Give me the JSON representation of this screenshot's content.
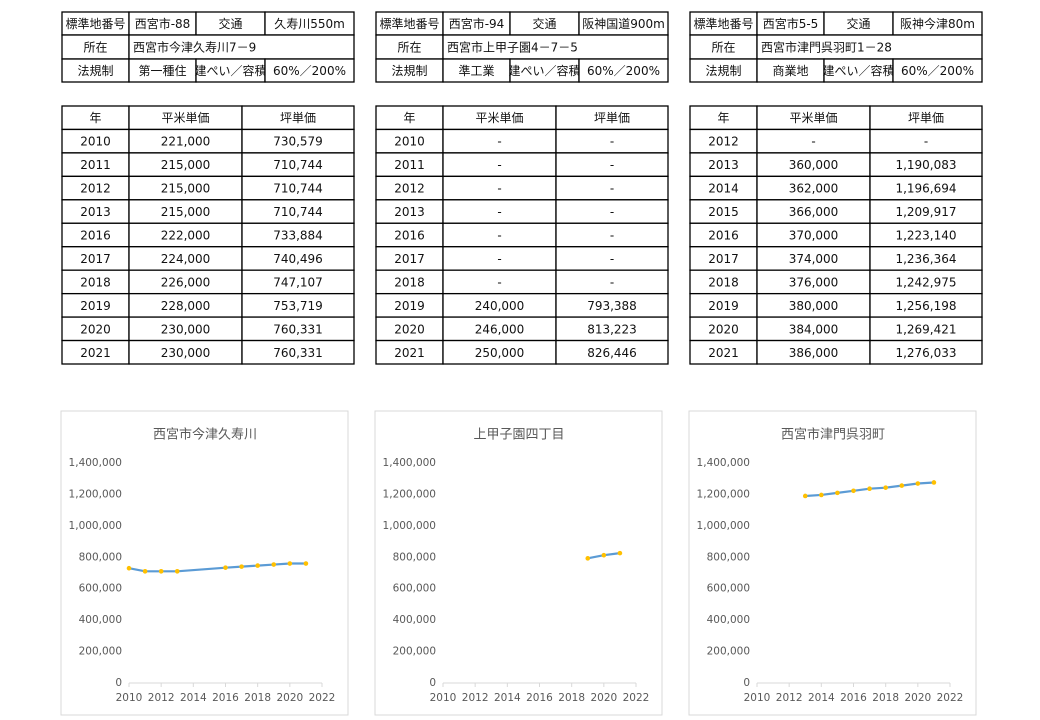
{
  "panels": [
    {
      "info": [
        [
          "標準地番号",
          "西宮市-88",
          "交通",
          "久寿川550m"
        ],
        [
          "所在",
          "西宮市今津久寿川7－9"
        ],
        [
          "法規制",
          "第一種住",
          "建ぺい／容積",
          "60%／200%"
        ]
      ],
      "table": {
        "header": [
          "年",
          "平米単価",
          "坪単価"
        ],
        "rows": [
          [
            "2010",
            "221,000",
            "730,579"
          ],
          [
            "2011",
            "215,000",
            "710,744"
          ],
          [
            "2012",
            "215,000",
            "710,744"
          ],
          [
            "2013",
            "215,000",
            "710,744"
          ],
          [
            "2016",
            "222,000",
            "733,884"
          ],
          [
            "2017",
            "224,000",
            "740,496"
          ],
          [
            "2018",
            "226,000",
            "747,107"
          ],
          [
            "2019",
            "228,000",
            "753,719"
          ],
          [
            "2020",
            "230,000",
            "760,331"
          ],
          [
            "2021",
            "230,000",
            "760,331"
          ]
        ]
      }
    },
    {
      "info": [
        [
          "標準地番号",
          "西宮市-94",
          "交通",
          "阪神国道900m"
        ],
        [
          "所在",
          "西宮市上甲子園4－7－5"
        ],
        [
          "法規制",
          "準工業",
          "建ぺい／容積",
          "60%／200%"
        ]
      ],
      "table": {
        "header": [
          "年",
          "平米単価",
          "坪単価"
        ],
        "rows": [
          [
            "2010",
            "-",
            "-"
          ],
          [
            "2011",
            "-",
            "-"
          ],
          [
            "2012",
            "-",
            "-"
          ],
          [
            "2013",
            "-",
            "-"
          ],
          [
            "2016",
            "-",
            "-"
          ],
          [
            "2017",
            "-",
            "-"
          ],
          [
            "2018",
            "-",
            "-"
          ],
          [
            "2019",
            "240,000",
            "793,388"
          ],
          [
            "2020",
            "246,000",
            "813,223"
          ],
          [
            "2021",
            "250,000",
            "826,446"
          ]
        ]
      }
    },
    {
      "info": [
        [
          "標準地番号",
          "西宮市5-5",
          "交通",
          "阪神今津80m"
        ],
        [
          "所在",
          "西宮市津門呉羽町1－28"
        ],
        [
          "法規制",
          "商業地",
          "建ぺい／容積",
          "60%／200%"
        ]
      ],
      "table": {
        "header": [
          "年",
          "平米単価",
          "坪単価"
        ],
        "rows": [
          [
            "2012",
            "-",
            "-"
          ],
          [
            "2013",
            "360,000",
            "1,190,083"
          ],
          [
            "2014",
            "362,000",
            "1,196,694"
          ],
          [
            "2015",
            "366,000",
            "1,209,917"
          ],
          [
            "2016",
            "370,000",
            "1,223,140"
          ],
          [
            "2017",
            "374,000",
            "1,236,364"
          ],
          [
            "2018",
            "376,000",
            "1,242,975"
          ],
          [
            "2019",
            "380,000",
            "1,256,198"
          ],
          [
            "2020",
            "384,000",
            "1,269,421"
          ],
          [
            "2021",
            "386,000",
            "1,276,033"
          ]
        ]
      }
    }
  ],
  "chart_data": [
    {
      "type": "line",
      "title": "西宮市今津久寿川",
      "x": [
        2010,
        2011,
        2012,
        2013,
        2016,
        2017,
        2018,
        2019,
        2020,
        2021
      ],
      "values": [
        730579,
        710744,
        710744,
        710744,
        733884,
        740496,
        747107,
        753719,
        760331,
        760331
      ],
      "color": "#5b9bd5",
      "marker_color": "#ffc000",
      "xlim": [
        2010,
        2022
      ],
      "xticks": [
        2010,
        2012,
        2014,
        2016,
        2018,
        2020,
        2022
      ],
      "ylim": [
        0,
        1400000
      ],
      "yticks": [
        0,
        {
          "value": 200000,
          "label": "200,000"
        },
        {
          "value": 400000,
          "label": "400,000"
        },
        {
          "value": 600000,
          "label": "600,000"
        },
        {
          "value": 800000,
          "label": "800,000"
        },
        {
          "value": 1000000,
          "label": "1,000,000"
        },
        {
          "value": 1200000,
          "label": "1,200,000"
        },
        {
          "value": 1400000,
          "label": "1,400,000"
        }
      ],
      "grid": false
    },
    {
      "type": "line",
      "title": "上甲子園四丁目",
      "x": [
        2019,
        2020,
        2021
      ],
      "values": [
        793388,
        813223,
        826446
      ],
      "color": "#5b9bd5",
      "marker_color": "#ffc000",
      "xlim": [
        2010,
        2022
      ],
      "xticks": [
        2010,
        2012,
        2014,
        2016,
        2018,
        2020,
        2022
      ],
      "ylim": [
        0,
        1400000
      ],
      "yticks": [
        0,
        {
          "value": 200000,
          "label": "200,000"
        },
        {
          "value": 400000,
          "label": "400,000"
        },
        {
          "value": 600000,
          "label": "600,000"
        },
        {
          "value": 800000,
          "label": "800,000"
        },
        {
          "value": 1000000,
          "label": "1,000,000"
        },
        {
          "value": 1200000,
          "label": "1,200,000"
        },
        {
          "value": 1400000,
          "label": "1,400,000"
        }
      ],
      "grid": false
    },
    {
      "type": "line",
      "title": "西宮市津門呉羽町",
      "x": [
        2013,
        2014,
        2015,
        2016,
        2017,
        2018,
        2019,
        2020,
        2021
      ],
      "values": [
        1190083,
        1196694,
        1209917,
        1223140,
        1236364,
        1242975,
        1256198,
        1269421,
        1276033
      ],
      "color": "#5b9bd5",
      "marker_color": "#ffc000",
      "xlim": [
        2010,
        2022
      ],
      "xticks": [
        2010,
        2012,
        2014,
        2016,
        2018,
        2020,
        2022
      ],
      "ylim": [
        0,
        1400000
      ],
      "yticks": [
        0,
        {
          "value": 200000,
          "label": "200,000"
        },
        {
          "value": 400000,
          "label": "400,000"
        },
        {
          "value": 600000,
          "label": "600,000"
        },
        {
          "value": 800000,
          "label": "800,000"
        },
        {
          "value": 1000000,
          "label": "1,000,000"
        },
        {
          "value": 1200000,
          "label": "1,200,000"
        },
        {
          "value": 1400000,
          "label": "1,400,000"
        }
      ],
      "grid": false
    }
  ]
}
